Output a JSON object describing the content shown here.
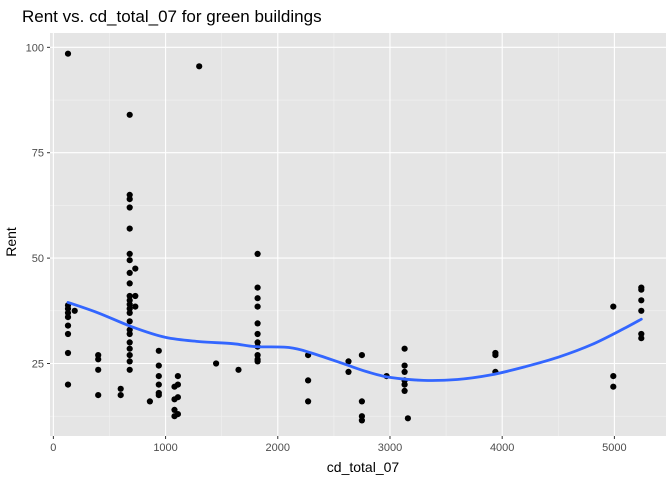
{
  "chart_data": {
    "type": "scatter",
    "title": "Rent vs. cd_total_07 for green buildings",
    "xlabel": "cd_total_07",
    "ylabel": "Rent",
    "xlim": [
      -30,
      5460
    ],
    "ylim": [
      7.8,
      103.4
    ],
    "x_ticks": [
      0,
      1000,
      2000,
      3000,
      4000,
      5000
    ],
    "x_tick_labels": [
      "0",
      "1000",
      "2000",
      "3000",
      "4000",
      "5000"
    ],
    "y_ticks": [
      25,
      50,
      75,
      100
    ],
    "y_tick_labels": [
      "25",
      "50",
      "75",
      "100"
    ],
    "grid": true,
    "legend": "none",
    "colors": {
      "panel": "#e5e5e5",
      "grid_major": "#ffffff",
      "grid_minor": "#f2f2f2",
      "point": "#000000",
      "smooth": "#3366ff",
      "tick": "#333333"
    },
    "series": [
      {
        "values": [
          {
            "x": 130,
            "y": 98.5
          },
          {
            "x": 130,
            "y": 38.8
          },
          {
            "x": 130,
            "y": 38
          },
          {
            "x": 130,
            "y": 37
          },
          {
            "x": 130,
            "y": 36
          },
          {
            "x": 130,
            "y": 34
          },
          {
            "x": 130,
            "y": 32
          },
          {
            "x": 130,
            "y": 27.5
          },
          {
            "x": 130,
            "y": 20
          },
          {
            "x": 190,
            "y": 37.5
          },
          {
            "x": 400,
            "y": 27
          },
          {
            "x": 400,
            "y": 26
          },
          {
            "x": 400,
            "y": 23.5
          },
          {
            "x": 400,
            "y": 17.5
          },
          {
            "x": 600,
            "y": 19
          },
          {
            "x": 600,
            "y": 17.5
          },
          {
            "x": 680,
            "y": 84
          },
          {
            "x": 680,
            "y": 65
          },
          {
            "x": 680,
            "y": 64
          },
          {
            "x": 680,
            "y": 62
          },
          {
            "x": 680,
            "y": 57
          },
          {
            "x": 680,
            "y": 51
          },
          {
            "x": 680,
            "y": 49.5
          },
          {
            "x": 680,
            "y": 46.5
          },
          {
            "x": 680,
            "y": 44
          },
          {
            "x": 680,
            "y": 41
          },
          {
            "x": 680,
            "y": 40
          },
          {
            "x": 680,
            "y": 39
          },
          {
            "x": 680,
            "y": 38
          },
          {
            "x": 680,
            "y": 37
          },
          {
            "x": 680,
            "y": 35
          },
          {
            "x": 680,
            "y": 33
          },
          {
            "x": 680,
            "y": 32
          },
          {
            "x": 680,
            "y": 30
          },
          {
            "x": 680,
            "y": 28.5
          },
          {
            "x": 680,
            "y": 27
          },
          {
            "x": 680,
            "y": 25.5
          },
          {
            "x": 680,
            "y": 23.5
          },
          {
            "x": 730,
            "y": 47.5
          },
          {
            "x": 730,
            "y": 41
          },
          {
            "x": 730,
            "y": 38.5
          },
          {
            "x": 860,
            "y": 16
          },
          {
            "x": 940,
            "y": 28
          },
          {
            "x": 940,
            "y": 24.5
          },
          {
            "x": 940,
            "y": 22
          },
          {
            "x": 940,
            "y": 20
          },
          {
            "x": 940,
            "y": 18
          },
          {
            "x": 940,
            "y": 17.5
          },
          {
            "x": 1080,
            "y": 19.5
          },
          {
            "x": 1080,
            "y": 16.5
          },
          {
            "x": 1080,
            "y": 14
          },
          {
            "x": 1080,
            "y": 12.5
          },
          {
            "x": 1110,
            "y": 22
          },
          {
            "x": 1110,
            "y": 20
          },
          {
            "x": 1110,
            "y": 17
          },
          {
            "x": 1110,
            "y": 13
          },
          {
            "x": 1300,
            "y": 95.5
          },
          {
            "x": 1450,
            "y": 25
          },
          {
            "x": 1650,
            "y": 23.5
          },
          {
            "x": 1820,
            "y": 51
          },
          {
            "x": 1820,
            "y": 43
          },
          {
            "x": 1820,
            "y": 40.5
          },
          {
            "x": 1820,
            "y": 38.5
          },
          {
            "x": 1820,
            "y": 34.5
          },
          {
            "x": 1820,
            "y": 32
          },
          {
            "x": 1820,
            "y": 30
          },
          {
            "x": 1820,
            "y": 29
          },
          {
            "x": 1820,
            "y": 27
          },
          {
            "x": 1820,
            "y": 26
          },
          {
            "x": 1820,
            "y": 25.5
          },
          {
            "x": 2270,
            "y": 27
          },
          {
            "x": 2270,
            "y": 21
          },
          {
            "x": 2270,
            "y": 16
          },
          {
            "x": 2630,
            "y": 25.5
          },
          {
            "x": 2630,
            "y": 23
          },
          {
            "x": 2750,
            "y": 27
          },
          {
            "x": 2750,
            "y": 16
          },
          {
            "x": 2750,
            "y": 12.5
          },
          {
            "x": 2750,
            "y": 11.5
          },
          {
            "x": 2970,
            "y": 22
          },
          {
            "x": 3130,
            "y": 28.5
          },
          {
            "x": 3130,
            "y": 24.5
          },
          {
            "x": 3130,
            "y": 23
          },
          {
            "x": 3130,
            "y": 21
          },
          {
            "x": 3130,
            "y": 20
          },
          {
            "x": 3130,
            "y": 18.5
          },
          {
            "x": 3160,
            "y": 12
          },
          {
            "x": 3940,
            "y": 27.5
          },
          {
            "x": 3940,
            "y": 27
          },
          {
            "x": 3940,
            "y": 23
          },
          {
            "x": 4990,
            "y": 38.5
          },
          {
            "x": 4990,
            "y": 22
          },
          {
            "x": 4990,
            "y": 19.5
          },
          {
            "x": 5240,
            "y": 43
          },
          {
            "x": 5240,
            "y": 42.5
          },
          {
            "x": 5240,
            "y": 40
          },
          {
            "x": 5240,
            "y": 37.5
          },
          {
            "x": 5240,
            "y": 32
          },
          {
            "x": 5240,
            "y": 31
          }
        ]
      }
    ],
    "smooth_line": {
      "method": "loess",
      "x": [
        130,
        400,
        700,
        1000,
        1300,
        1600,
        1800,
        2100,
        2300,
        2600,
        2800,
        3000,
        3300,
        3600,
        3900,
        4200,
        4500,
        4800,
        5100,
        5240
      ],
      "y": [
        39.5,
        37,
        33.7,
        31.2,
        30.2,
        29.7,
        29,
        28.8,
        27.5,
        24.8,
        23,
        21.7,
        21,
        21.2,
        22.3,
        24.2,
        26.5,
        29.5,
        33.5,
        35.5
      ]
    }
  }
}
